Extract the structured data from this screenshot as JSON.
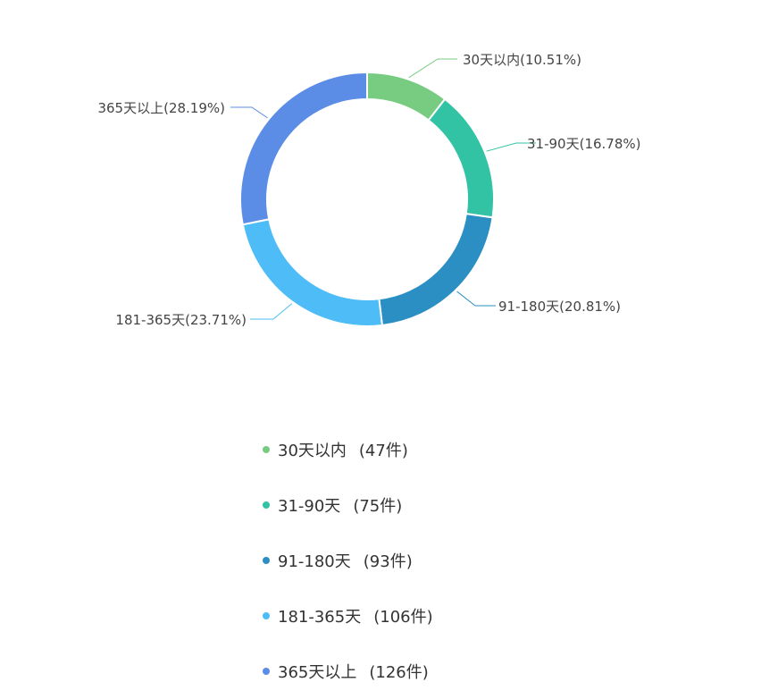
{
  "chart_data": {
    "type": "pie",
    "variant": "donut",
    "categories": [
      "30天以内",
      "31-90天",
      "91-180天",
      "181-365天",
      "365天以上"
    ],
    "values": [
      47,
      75,
      93,
      106,
      126
    ],
    "percent_labels": [
      "30天以内(10.51%)",
      "31-90天(16.78%)",
      "91-180天(20.81%)",
      "181-365天(23.71%)",
      "365天以上(28.19%)"
    ],
    "colors": [
      "#78cc82",
      "#32c2a4",
      "#2b8fc4",
      "#4dbcf7",
      "#5b8ce6"
    ],
    "legend_placement": "bottom"
  },
  "legend": [
    {
      "name": "30天以内",
      "count": "(47件)"
    },
    {
      "name": "31-90天",
      "count": "(75件)"
    },
    {
      "name": "91-180天",
      "count": "(93件)"
    },
    {
      "name": "181-365天",
      "count": "(106件)"
    },
    {
      "name": "365天以上",
      "count": "(126件)"
    }
  ]
}
